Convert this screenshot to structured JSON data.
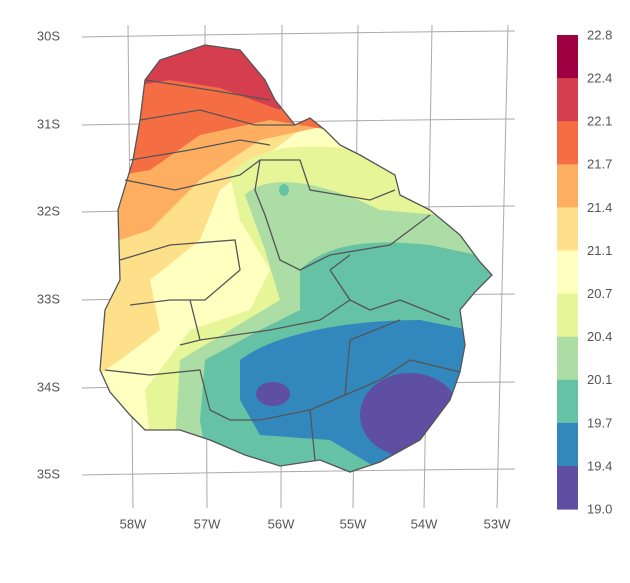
{
  "map": {
    "lat_labels": [
      "30S",
      "31S",
      "32S",
      "33S",
      "34S",
      "35S"
    ],
    "lon_labels": [
      "58W",
      "57W",
      "56W",
      "55W",
      "54W",
      "53W"
    ]
  },
  "legend": {
    "ticks": [
      22.8,
      22.4,
      22.1,
      21.7,
      21.4,
      21.1,
      20.7,
      20.4,
      20.1,
      19.7,
      19.4,
      {
        "value": 19,
        "label": "19.0"
      }
    ],
    "colors": [
      "#9e0142",
      "#d53e4f",
      "#f46d43",
      "#fdae61",
      "#fee08b",
      "#ffffbf",
      "#e6f598",
      "#abdda4",
      "#66c2a5",
      "#3288bd",
      "#5e4fa2"
    ]
  }
}
